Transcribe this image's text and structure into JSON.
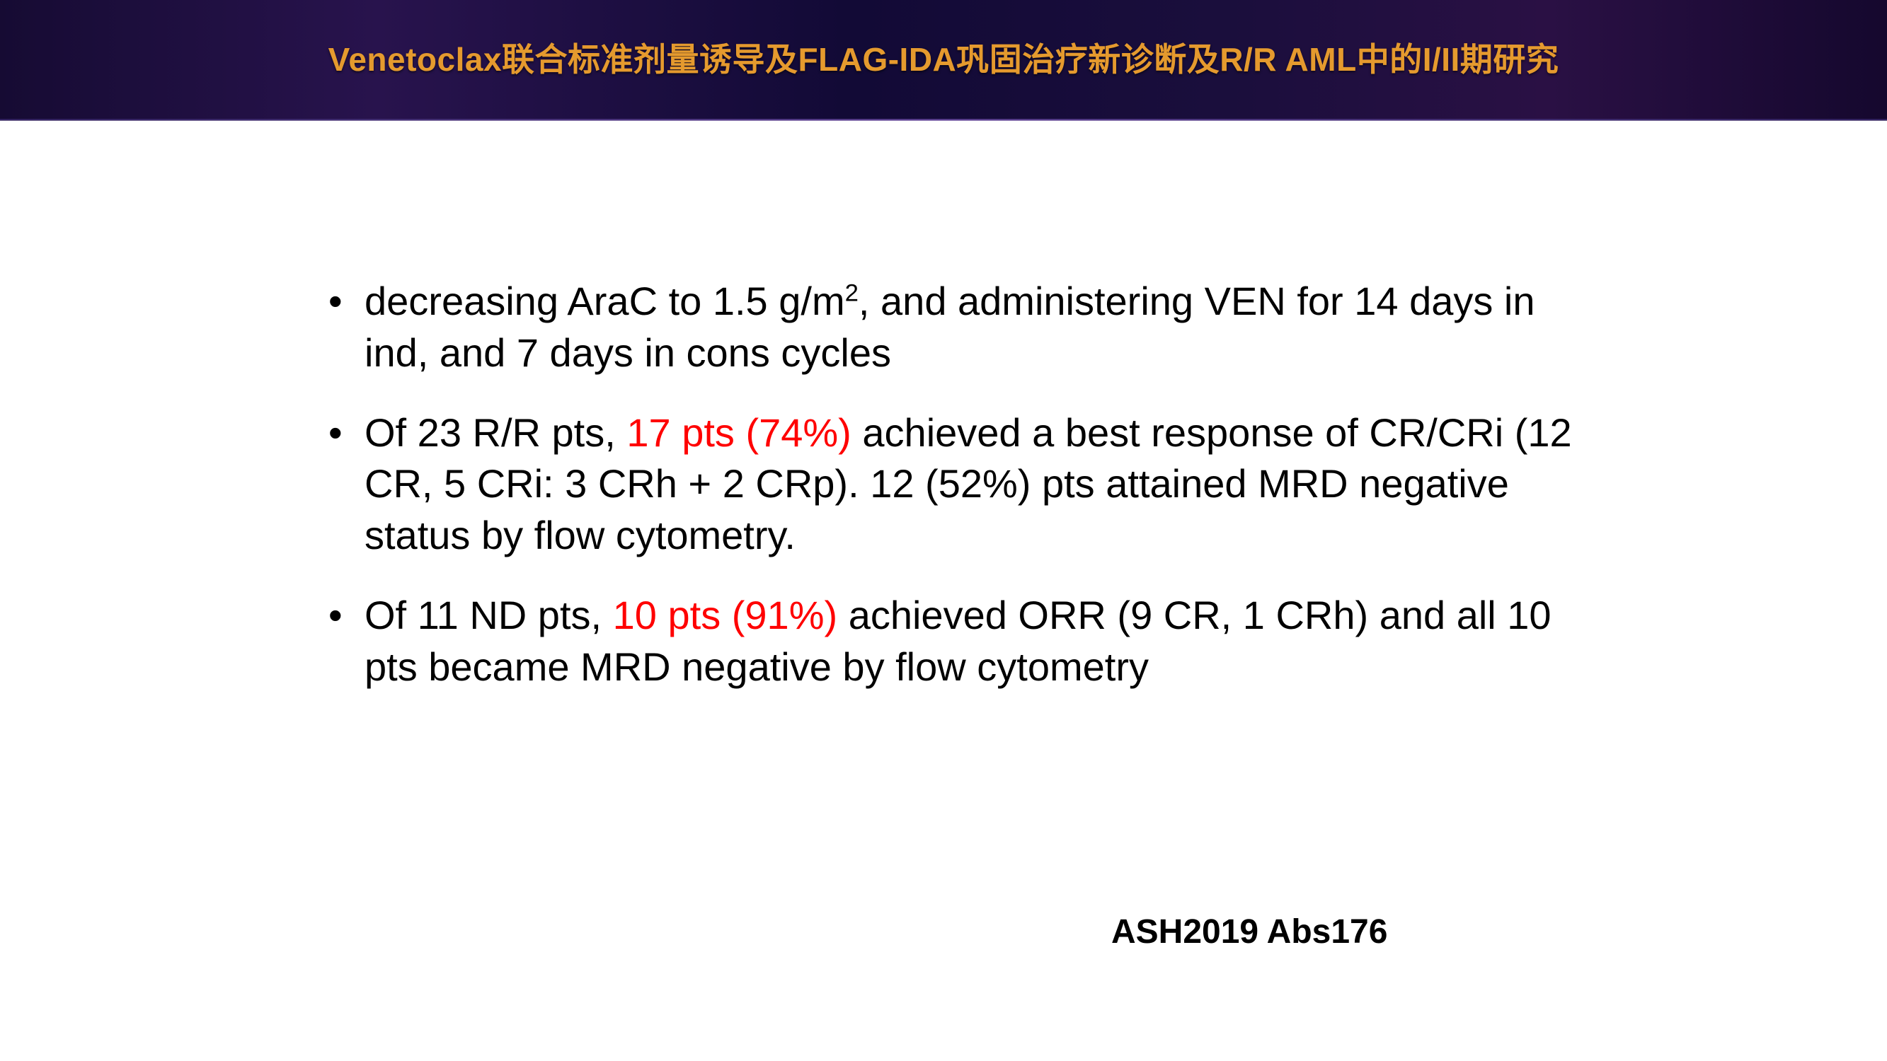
{
  "colors": {
    "title_text": "#e59a2e",
    "header_gradient": [
      "#160b33",
      "#28134d",
      "#120a36",
      "#1a0e3c",
      "#2a1044",
      "#15082e"
    ],
    "body_text": "#000000",
    "highlight_text": "#ff0000",
    "slide_bg": "#ffffff"
  },
  "typography": {
    "title_fontsize": 46,
    "title_weight": 700,
    "bullet_fontsize": 56,
    "bullet_lineheight": 1.3,
    "citation_fontsize": 48,
    "citation_weight": 700,
    "font_family": "Arial / Microsoft YaHei"
  },
  "title": "Venetoclax联合标准剂量诱导及FLAG-IDA巩固治疗新诊断及R/R AML中的I/II期研究",
  "bullets": [
    {
      "b1_a": "decreasing AraC to 1.5 g/m",
      "b1_sup": "2",
      "b1_b": ", and administering VEN for 14 days in ind, and 7 days in cons cycles"
    },
    {
      "b2_a": " Of 23 R/R pts, ",
      "b2_hl": "17 pts (74%)",
      "b2_b": " achieved a best response of CR/CRi (12 CR, 5 CRi: 3 CRh + 2 CRp). 12 (52%) pts attained MRD negative status by flow cytometry."
    },
    {
      "b3_a": "Of 11 ND pts, ",
      "b3_hl": "10 pts (91%)",
      "b3_b": " achieved ORR (9 CR, 1 CRh) and all 10 pts became MRD negative by flow cytometry"
    }
  ],
  "citation": "ASH2019 Abs176"
}
